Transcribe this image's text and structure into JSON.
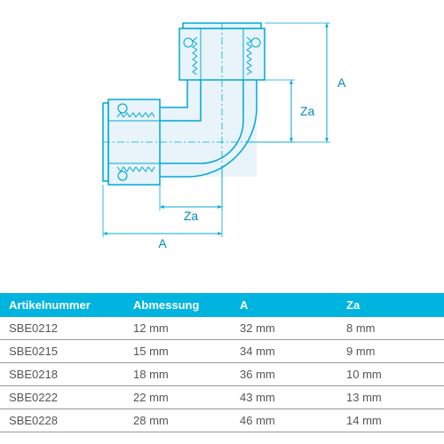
{
  "diagram": {
    "type": "technical-drawing",
    "labels": {
      "A_right": "A",
      "A_bottom": "A",
      "Za_right": "Za",
      "Za_bottom": "Za"
    },
    "colors": {
      "outline": "#00a8d6",
      "fill_light": "#e8f4f9",
      "fill_mid": "#cfe8f2",
      "dimension": "#00a8d6",
      "label_text": "#008bb8"
    },
    "stroke_width": 1.5,
    "label_fontsize": 14
  },
  "table": {
    "header_bg": "#00b4e0",
    "header_text_color": "#ffffff",
    "row_border_color": "#999999",
    "cell_text_color": "#555555",
    "columns": [
      "Artikelnummer",
      "Abmessung",
      "A",
      "Za"
    ],
    "rows": [
      [
        "SBE0212",
        "12 mm",
        "32 mm",
        "8 mm"
      ],
      [
        "SBE0215",
        "15 mm",
        "34 mm",
        "9 mm"
      ],
      [
        "SBE0218",
        "18 mm",
        "36 mm",
        "10 mm"
      ],
      [
        "SBE0222",
        "22 mm",
        "43 mm",
        "13 mm"
      ],
      [
        "SBE0228",
        "28 mm",
        "46 mm",
        "14 mm"
      ]
    ]
  }
}
